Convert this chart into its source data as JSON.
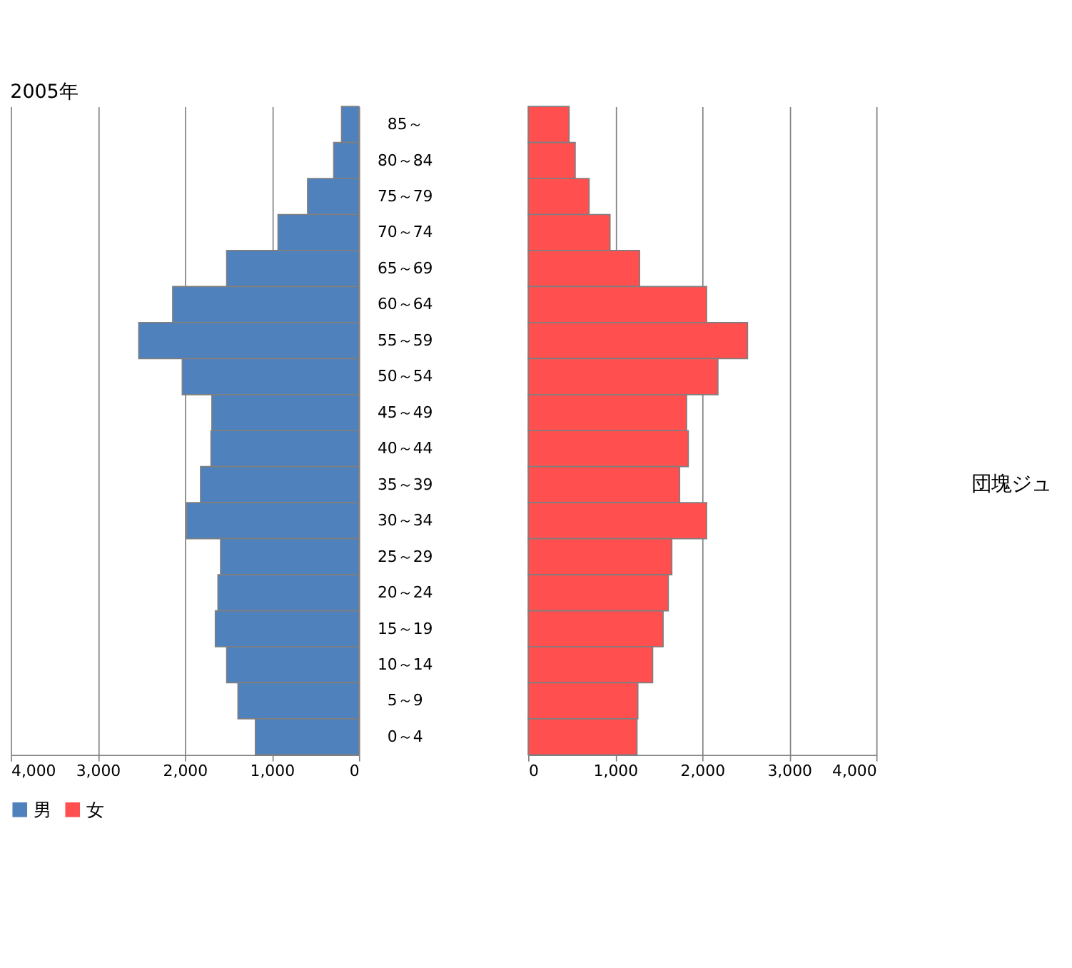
{
  "chart_data": [
    {
      "type": "bar",
      "orientation": "horizontal",
      "title": "2005年",
      "categories": [
        "85～",
        "80～84",
        "75～79",
        "70～74",
        "65～69",
        "60～64",
        "55～59",
        "50～54",
        "45～49",
        "40～44",
        "35～39",
        "30～34",
        "25～29",
        "20～24",
        "15～19",
        "10～14",
        "5～9",
        "0～4"
      ],
      "series": [
        {
          "name": "男",
          "color": "#4f81bd",
          "values": [
            200,
            290,
            590,
            930,
            1520,
            2140,
            2530,
            2030,
            1690,
            1700,
            1820,
            1980,
            1590,
            1620,
            1650,
            1520,
            1390,
            1190
          ]
        }
      ],
      "xlim": [
        4000,
        0
      ],
      "xticks": [
        {
          "value": 4000,
          "label": "4,000"
        },
        {
          "value": 3000,
          "label": "3,000"
        },
        {
          "value": 2000,
          "label": "2,000"
        },
        {
          "value": 1000,
          "label": "1,000"
        },
        0
      ],
      "grid": "x",
      "legend": "bottom"
    },
    {
      "type": "bar",
      "orientation": "horizontal",
      "categories": [
        "85～",
        "80～84",
        "75～79",
        "70～74",
        "65～69",
        "60～64",
        "55～59",
        "50～54",
        "45～49",
        "40～44",
        "35～39",
        "30～34",
        "25～29",
        "20～24",
        "15～19",
        "10～14",
        "5～9",
        "0～4"
      ],
      "series": [
        {
          "name": "女",
          "color": "#ff4f4f",
          "values": [
            470,
            540,
            700,
            940,
            1280,
            2050,
            2520,
            2180,
            1820,
            1840,
            1740,
            2050,
            1650,
            1610,
            1550,
            1430,
            1260,
            1250
          ]
        }
      ],
      "xlim": [
        0,
        4000
      ],
      "xticks": [
        0,
        {
          "value": 1000,
          "label": "1,000"
        },
        {
          "value": 2000,
          "label": "2,000"
        },
        {
          "value": 3000,
          "label": "3,000"
        },
        {
          "value": 4000,
          "label": "4,000"
        }
      ],
      "grid": "x",
      "legend": "bottom",
      "tick_labels": "x",
      "annotations": [
        "団塊ジュ"
      ]
    }
  ]
}
